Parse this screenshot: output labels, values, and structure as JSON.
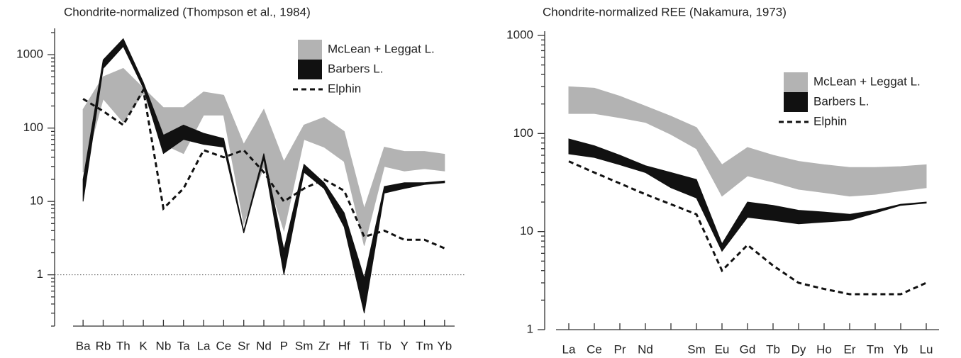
{
  "chart_data": [
    {
      "type": "line",
      "title": "Chondrite-normalized (Thompson et al., 1984)",
      "categories": [
        "Ba",
        "Rb",
        "Th",
        "K",
        "Nb",
        "Ta",
        "La",
        "Ce",
        "Sr",
        "Nd",
        "P",
        "Sm",
        "Zr",
        "Hf",
        "Ti",
        "Tb",
        "Y",
        "Tm",
        "Yb"
      ],
      "log_y": true,
      "ylim": [
        0.2,
        2000
      ],
      "yticks": [
        1,
        10,
        100,
        1000
      ],
      "reference_line": 1,
      "legend": "upper right",
      "series": [
        {
          "name": "McLean + Leggat L.",
          "color": "#b3b3b3",
          "low": [
            25,
            250,
            120,
            300,
            60,
            45,
            150,
            150,
            5,
            30,
            4,
            70,
            55,
            35,
            2.5,
            30,
            26,
            28,
            26
          ],
          "high": [
            180,
            500,
            650,
            350,
            190,
            190,
            310,
            280,
            60,
            180,
            35,
            110,
            140,
            90,
            8,
            55,
            48,
            48,
            44
          ]
        },
        {
          "name": "Barbers L.",
          "color": "#111111",
          "low": [
            10,
            650,
            1300,
            350,
            45,
            70,
            60,
            55,
            3.7,
            38,
            1.0,
            25,
            15,
            4.5,
            0.3,
            13,
            15,
            17,
            18
          ],
          "high": [
            20,
            850,
            1650,
            420,
            80,
            110,
            85,
            72,
            4,
            45,
            2.2,
            32,
            18,
            7,
            0.9,
            16,
            18,
            18,
            19
          ]
        },
        {
          "name": "Elphin",
          "color": "#111111",
          "linestyle": "dashed",
          "values": [
            250,
            170,
            110,
            330,
            8,
            15,
            50,
            40,
            50,
            25,
            10,
            15,
            20,
            14,
            3.3,
            4,
            3,
            3,
            2.3
          ]
        }
      ]
    },
    {
      "type": "line",
      "title": "Chondrite-normalized REE (Nakamura, 1973)",
      "categories": [
        "La",
        "Ce",
        "Pr",
        "Nd",
        null,
        "Sm",
        "Eu",
        "Gd",
        "Tb",
        "Dy",
        "Ho",
        "Er",
        "Tm",
        "Yb",
        "Lu"
      ],
      "log_y": true,
      "ylim": [
        1,
        1000
      ],
      "yticks": [
        1,
        10,
        100,
        1000
      ],
      "legend": "upper right",
      "series": [
        {
          "name": "McLean + Leggat L.",
          "color": "#b3b3b3",
          "low": [
            160,
            160,
            145,
            130,
            98,
            70,
            23,
            37,
            32,
            27,
            25,
            23,
            24,
            26,
            28
          ],
          "high": [
            300,
            290,
            240,
            190,
            150,
            115,
            48,
            72,
            60,
            52,
            48,
            45,
            45,
            46,
            48
          ]
        },
        {
          "name": "Barbers L.",
          "color": "#111111",
          "low": [
            62,
            57,
            48,
            40,
            28,
            22,
            6.3,
            14,
            13,
            12,
            12.5,
            13,
            15.5,
            18.5,
            19.5
          ],
          "high": [
            88,
            75,
            60,
            47,
            40,
            34,
            7.5,
            20,
            18.5,
            16.5,
            15.8,
            15,
            16.5,
            19,
            20
          ]
        },
        {
          "name": "Elphin",
          "color": "#111111",
          "linestyle": "dashed",
          "values": [
            52,
            40,
            31,
            24,
            19,
            15,
            4,
            7.3,
            4.5,
            3,
            2.6,
            2.3,
            2.3,
            2.3,
            3
          ]
        }
      ]
    }
  ]
}
